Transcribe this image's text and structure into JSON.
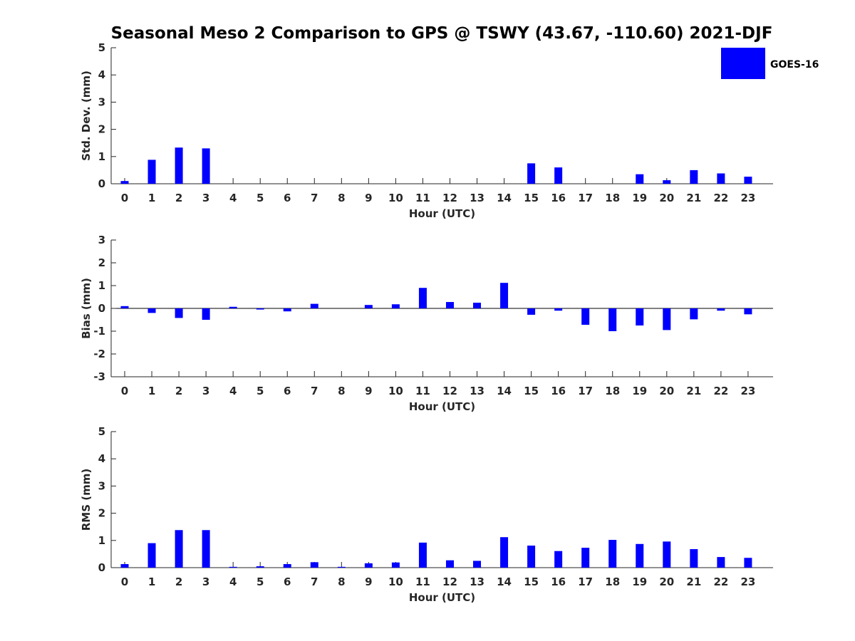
{
  "title": "Seasonal Meso 2 Comparison to GPS @ TSWY (43.67, -110.60) 2021-DJF",
  "legend": {
    "label": "GOES-16",
    "color": "#0000ff"
  },
  "chart_data": [
    {
      "type": "bar",
      "categories": [
        "0",
        "1",
        "2",
        "3",
        "4",
        "5",
        "6",
        "7",
        "8",
        "9",
        "10",
        "11",
        "12",
        "13",
        "14",
        "15",
        "16",
        "17",
        "18",
        "19",
        "20",
        "21",
        "22",
        "23"
      ],
      "series": [
        {
          "name": "GOES-16",
          "values": [
            0.1,
            0.88,
            1.33,
            1.3,
            0,
            0,
            0,
            0,
            0,
            0,
            0,
            0,
            0,
            0,
            0,
            0.75,
            0.6,
            0,
            0,
            0.35,
            0.13,
            0.5,
            0.38,
            0.26
          ]
        }
      ],
      "xlabel": "Hour (UTC)",
      "ylabel": "Std. Dev. (mm)",
      "ylim": [
        0,
        5
      ],
      "yticks": [
        "0",
        "1",
        "2",
        "3",
        "4",
        "5"
      ]
    },
    {
      "type": "bar",
      "categories": [
        "0",
        "1",
        "2",
        "3",
        "4",
        "5",
        "6",
        "7",
        "8",
        "9",
        "10",
        "11",
        "12",
        "13",
        "14",
        "15",
        "16",
        "17",
        "18",
        "19",
        "20",
        "21",
        "22",
        "23"
      ],
      "series": [
        {
          "name": "GOES-16",
          "values": [
            0.1,
            -0.2,
            -0.42,
            -0.5,
            0.07,
            -0.05,
            -0.13,
            0.2,
            0,
            0.15,
            0.18,
            0.9,
            0.28,
            0.25,
            1.12,
            -0.28,
            -0.1,
            -0.72,
            -1.0,
            -0.75,
            -0.95,
            -0.48,
            -0.1,
            -0.26
          ]
        }
      ],
      "xlabel": "Hour (UTC)",
      "ylabel": "Bias (mm)",
      "ylim": [
        -3,
        3
      ],
      "yticks": [
        "-3",
        "-2",
        "-1",
        "0",
        "1",
        "2",
        "3"
      ]
    },
    {
      "type": "bar",
      "categories": [
        "0",
        "1",
        "2",
        "3",
        "4",
        "5",
        "6",
        "7",
        "8",
        "9",
        "10",
        "11",
        "12",
        "13",
        "14",
        "15",
        "16",
        "17",
        "18",
        "19",
        "20",
        "21",
        "22",
        "23"
      ],
      "series": [
        {
          "name": "GOES-16",
          "values": [
            0.13,
            0.9,
            1.38,
            1.38,
            0.03,
            0.05,
            0.13,
            0.2,
            0.03,
            0.16,
            0.19,
            0.92,
            0.27,
            0.25,
            1.12,
            0.81,
            0.61,
            0.73,
            1.02,
            0.87,
            0.96,
            0.68,
            0.39,
            0.36
          ]
        }
      ],
      "xlabel": "Hour (UTC)",
      "ylabel": "RMS (mm)",
      "ylim": [
        0,
        5
      ],
      "yticks": [
        "0",
        "1",
        "2",
        "3",
        "4",
        "5"
      ]
    }
  ]
}
